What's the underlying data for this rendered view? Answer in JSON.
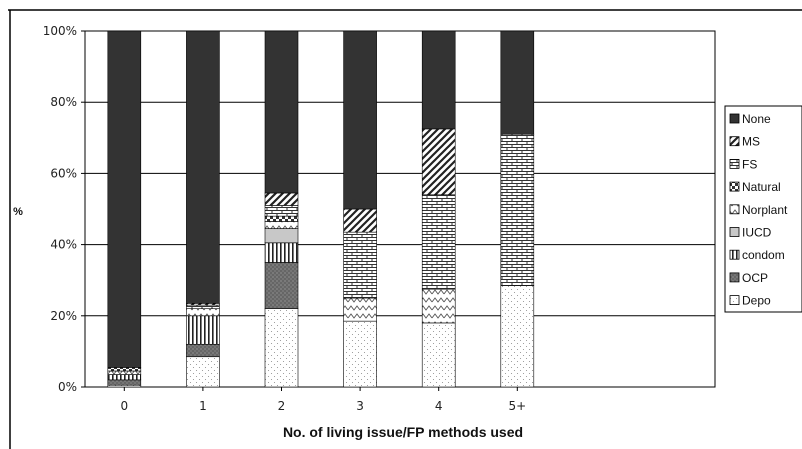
{
  "chart_data": {
    "type": "bar",
    "stacked": true,
    "percent": true,
    "xlabel": "No. of living issue/FP methods used",
    "ylabel": "%",
    "ylim": [
      0,
      100
    ],
    "yticks": [
      "0%",
      "20%",
      "40%",
      "60%",
      "80%",
      "100%"
    ],
    "categories": [
      "0",
      "1",
      "2",
      "3",
      "4",
      "5+"
    ],
    "series": [
      {
        "name": "Depo",
        "values": [
          0.5,
          8.5,
          22,
          18.5,
          18,
          28.5
        ]
      },
      {
        "name": "OCP",
        "values": [
          1.5,
          3.5,
          13,
          0,
          0,
          0
        ]
      },
      {
        "name": "condom",
        "values": [
          1.5,
          8,
          5.5,
          0,
          0,
          0
        ]
      },
      {
        "name": "IUCD",
        "values": [
          0,
          0,
          4,
          0,
          0,
          0
        ]
      },
      {
        "name": "Norplant",
        "values": [
          1,
          2,
          2,
          6.5,
          9.5,
          0
        ]
      },
      {
        "name": "Natural",
        "values": [
          1,
          0,
          1.5,
          0,
          0,
          0
        ]
      },
      {
        "name": "FS",
        "values": [
          0,
          1,
          3,
          18.5,
          26.5,
          42.5
        ]
      },
      {
        "name": "MS",
        "values": [
          0,
          0.5,
          3.5,
          6.5,
          18.5,
          0
        ]
      },
      {
        "name": "None",
        "values": [
          94.5,
          76.5,
          45.5,
          50,
          27.5,
          29
        ]
      }
    ],
    "legend_order": [
      "None",
      "MS",
      "FS",
      "Natural",
      "Norplant",
      "IUCD",
      "condom",
      "OCP",
      "Depo"
    ],
    "legend_position": "right",
    "grid": true
  }
}
